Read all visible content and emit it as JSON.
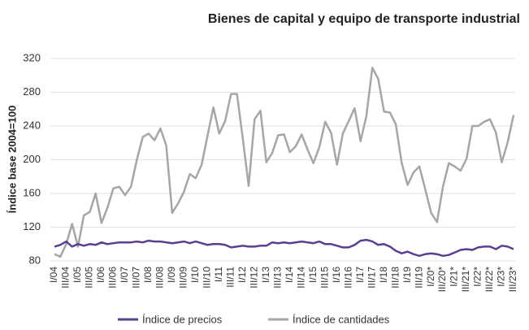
{
  "chart_data": {
    "type": "line",
    "title": "Bienes de capital y equipo de transporte industrial",
    "y_label": "Índice base 2004=100",
    "categories": [
      "I/04",
      null,
      "III/04",
      null,
      "I/05",
      null,
      "III/05",
      null,
      "I/06",
      null,
      "III/06",
      null,
      "I/07",
      null,
      "III/07",
      null,
      "I/08",
      null,
      "III/08",
      null,
      "I/09",
      null,
      "III/09",
      null,
      "I/10",
      null,
      "III/10",
      null,
      "I/11",
      null,
      "III/11",
      null,
      "I/12",
      null,
      "III/12",
      null,
      "I/13",
      null,
      "III/13",
      null,
      "I/14",
      null,
      "III/14",
      null,
      "I/15",
      null,
      "III/15",
      null,
      "I/16",
      null,
      "III/16",
      null,
      "I/17",
      null,
      "III/17",
      null,
      "I/18",
      null,
      "III/18",
      null,
      "I/19",
      null,
      "III/19",
      null,
      "I/20*",
      null,
      "III/20*",
      null,
      "I/21*",
      null,
      "III/21*",
      null,
      "I/22*",
      null,
      "III/22*",
      null,
      "I/23*",
      null,
      "III/23*"
    ],
    "series": [
      {
        "name": "Índice de precios",
        "color": "#5b3f8f",
        "values": [
          97,
          99,
          103,
          97,
          100,
          98,
          100,
          99,
          102,
          100,
          101,
          102,
          102,
          102,
          103,
          102,
          104,
          103,
          103,
          102,
          101,
          102,
          103,
          101,
          103,
          101,
          99,
          100,
          100,
          99,
          96,
          97,
          98,
          97,
          97,
          98,
          98,
          102,
          101,
          102,
          101,
          102,
          103,
          102,
          101,
          103,
          100,
          100,
          98,
          96,
          96,
          99,
          104,
          105,
          103,
          99,
          100,
          97,
          92,
          89,
          91,
          88,
          86,
          88,
          89,
          88,
          86,
          87,
          90,
          93,
          94,
          93,
          96,
          97,
          97,
          94,
          98,
          97,
          94
        ]
      },
      {
        "name": "Índice de cantidades",
        "color": "#a6a6a6",
        "values": [
          88,
          85,
          100,
          124,
          97,
          134,
          138,
          160,
          125,
          143,
          166,
          168,
          158,
          168,
          200,
          227,
          231,
          223,
          237,
          217,
          137,
          148,
          162,
          183,
          178,
          194,
          228,
          262,
          231,
          246,
          278,
          278,
          225,
          169,
          248,
          258,
          197,
          208,
          229,
          230,
          209,
          216,
          230,
          212,
          196,
          215,
          245,
          232,
          194,
          231,
          246,
          261,
          222,
          252,
          309,
          296,
          257,
          256,
          242,
          196,
          170,
          185,
          192,
          165,
          137,
          126,
          168,
          196,
          192,
          187,
          201,
          240,
          240,
          245,
          248,
          232,
          197,
          221,
          253
        ]
      }
    ],
    "ylim": [
      80,
      320
    ],
    "yticks": [
      80,
      120,
      160,
      200,
      240,
      280,
      320
    ],
    "grid": true,
    "legend": "bottom"
  }
}
